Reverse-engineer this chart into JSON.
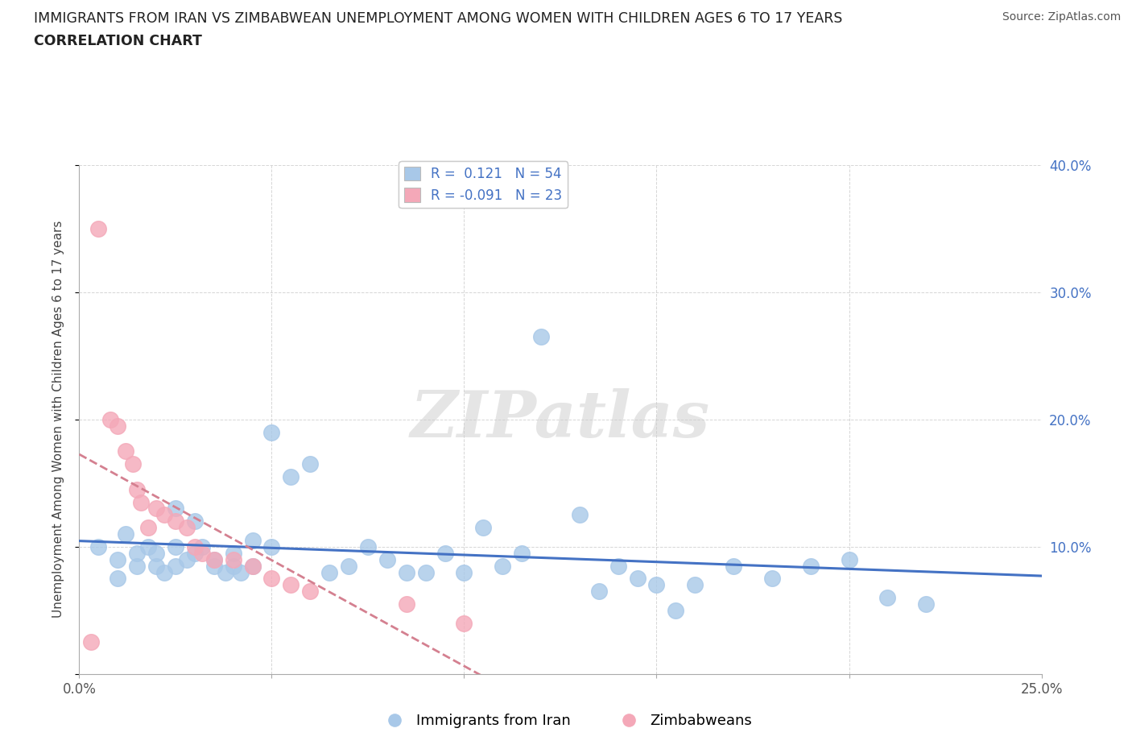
{
  "title": "IMMIGRANTS FROM IRAN VS ZIMBABWEAN UNEMPLOYMENT AMONG WOMEN WITH CHILDREN AGES 6 TO 17 YEARS",
  "subtitle": "CORRELATION CHART",
  "source": "Source: ZipAtlas.com",
  "ylabel": "Unemployment Among Women with Children Ages 6 to 17 years",
  "xlim": [
    0.0,
    0.25
  ],
  "ylim": [
    0.0,
    0.4
  ],
  "x_ticks": [
    0.0,
    0.05,
    0.1,
    0.15,
    0.2,
    0.25
  ],
  "x_tick_labels": [
    "0.0%",
    "",
    "",
    "",
    "",
    "25.0%"
  ],
  "y_ticks": [
    0.0,
    0.1,
    0.2,
    0.3,
    0.4
  ],
  "y_tick_labels_right": [
    "",
    "10.0%",
    "20.0%",
    "30.0%",
    "40.0%"
  ],
  "iran_R": "0.121",
  "iran_N": "54",
  "zim_R": "-0.091",
  "zim_N": "23",
  "iran_color": "#a8c8e8",
  "zim_color": "#f4a8b8",
  "iran_line_color": "#4472c4",
  "zim_line_color": "#d48090",
  "watermark": "ZIPatlas",
  "iran_scatter_x": [
    0.005,
    0.01,
    0.01,
    0.012,
    0.015,
    0.015,
    0.018,
    0.02,
    0.02,
    0.022,
    0.025,
    0.025,
    0.025,
    0.028,
    0.03,
    0.03,
    0.032,
    0.035,
    0.035,
    0.038,
    0.04,
    0.04,
    0.042,
    0.045,
    0.045,
    0.05,
    0.05,
    0.055,
    0.06,
    0.065,
    0.07,
    0.075,
    0.08,
    0.085,
    0.09,
    0.095,
    0.1,
    0.105,
    0.11,
    0.12,
    0.13,
    0.14,
    0.15,
    0.16,
    0.17,
    0.18,
    0.19,
    0.2,
    0.21,
    0.22,
    0.115,
    0.135,
    0.145,
    0.155
  ],
  "iran_scatter_y": [
    0.1,
    0.09,
    0.075,
    0.11,
    0.085,
    0.095,
    0.1,
    0.085,
    0.095,
    0.08,
    0.13,
    0.1,
    0.085,
    0.09,
    0.12,
    0.095,
    0.1,
    0.085,
    0.09,
    0.08,
    0.085,
    0.095,
    0.08,
    0.105,
    0.085,
    0.19,
    0.1,
    0.155,
    0.165,
    0.08,
    0.085,
    0.1,
    0.09,
    0.08,
    0.08,
    0.095,
    0.08,
    0.115,
    0.085,
    0.265,
    0.125,
    0.085,
    0.07,
    0.07,
    0.085,
    0.075,
    0.085,
    0.09,
    0.06,
    0.055,
    0.095,
    0.065,
    0.075,
    0.05
  ],
  "zim_scatter_x": [
    0.003,
    0.005,
    0.008,
    0.01,
    0.012,
    0.014,
    0.015,
    0.016,
    0.018,
    0.02,
    0.022,
    0.025,
    0.028,
    0.03,
    0.032,
    0.035,
    0.04,
    0.045,
    0.05,
    0.055,
    0.06,
    0.085,
    0.1
  ],
  "zim_scatter_y": [
    0.025,
    0.35,
    0.2,
    0.195,
    0.175,
    0.165,
    0.145,
    0.135,
    0.115,
    0.13,
    0.125,
    0.12,
    0.115,
    0.1,
    0.095,
    0.09,
    0.09,
    0.085,
    0.075,
    0.07,
    0.065,
    0.055,
    0.04
  ]
}
